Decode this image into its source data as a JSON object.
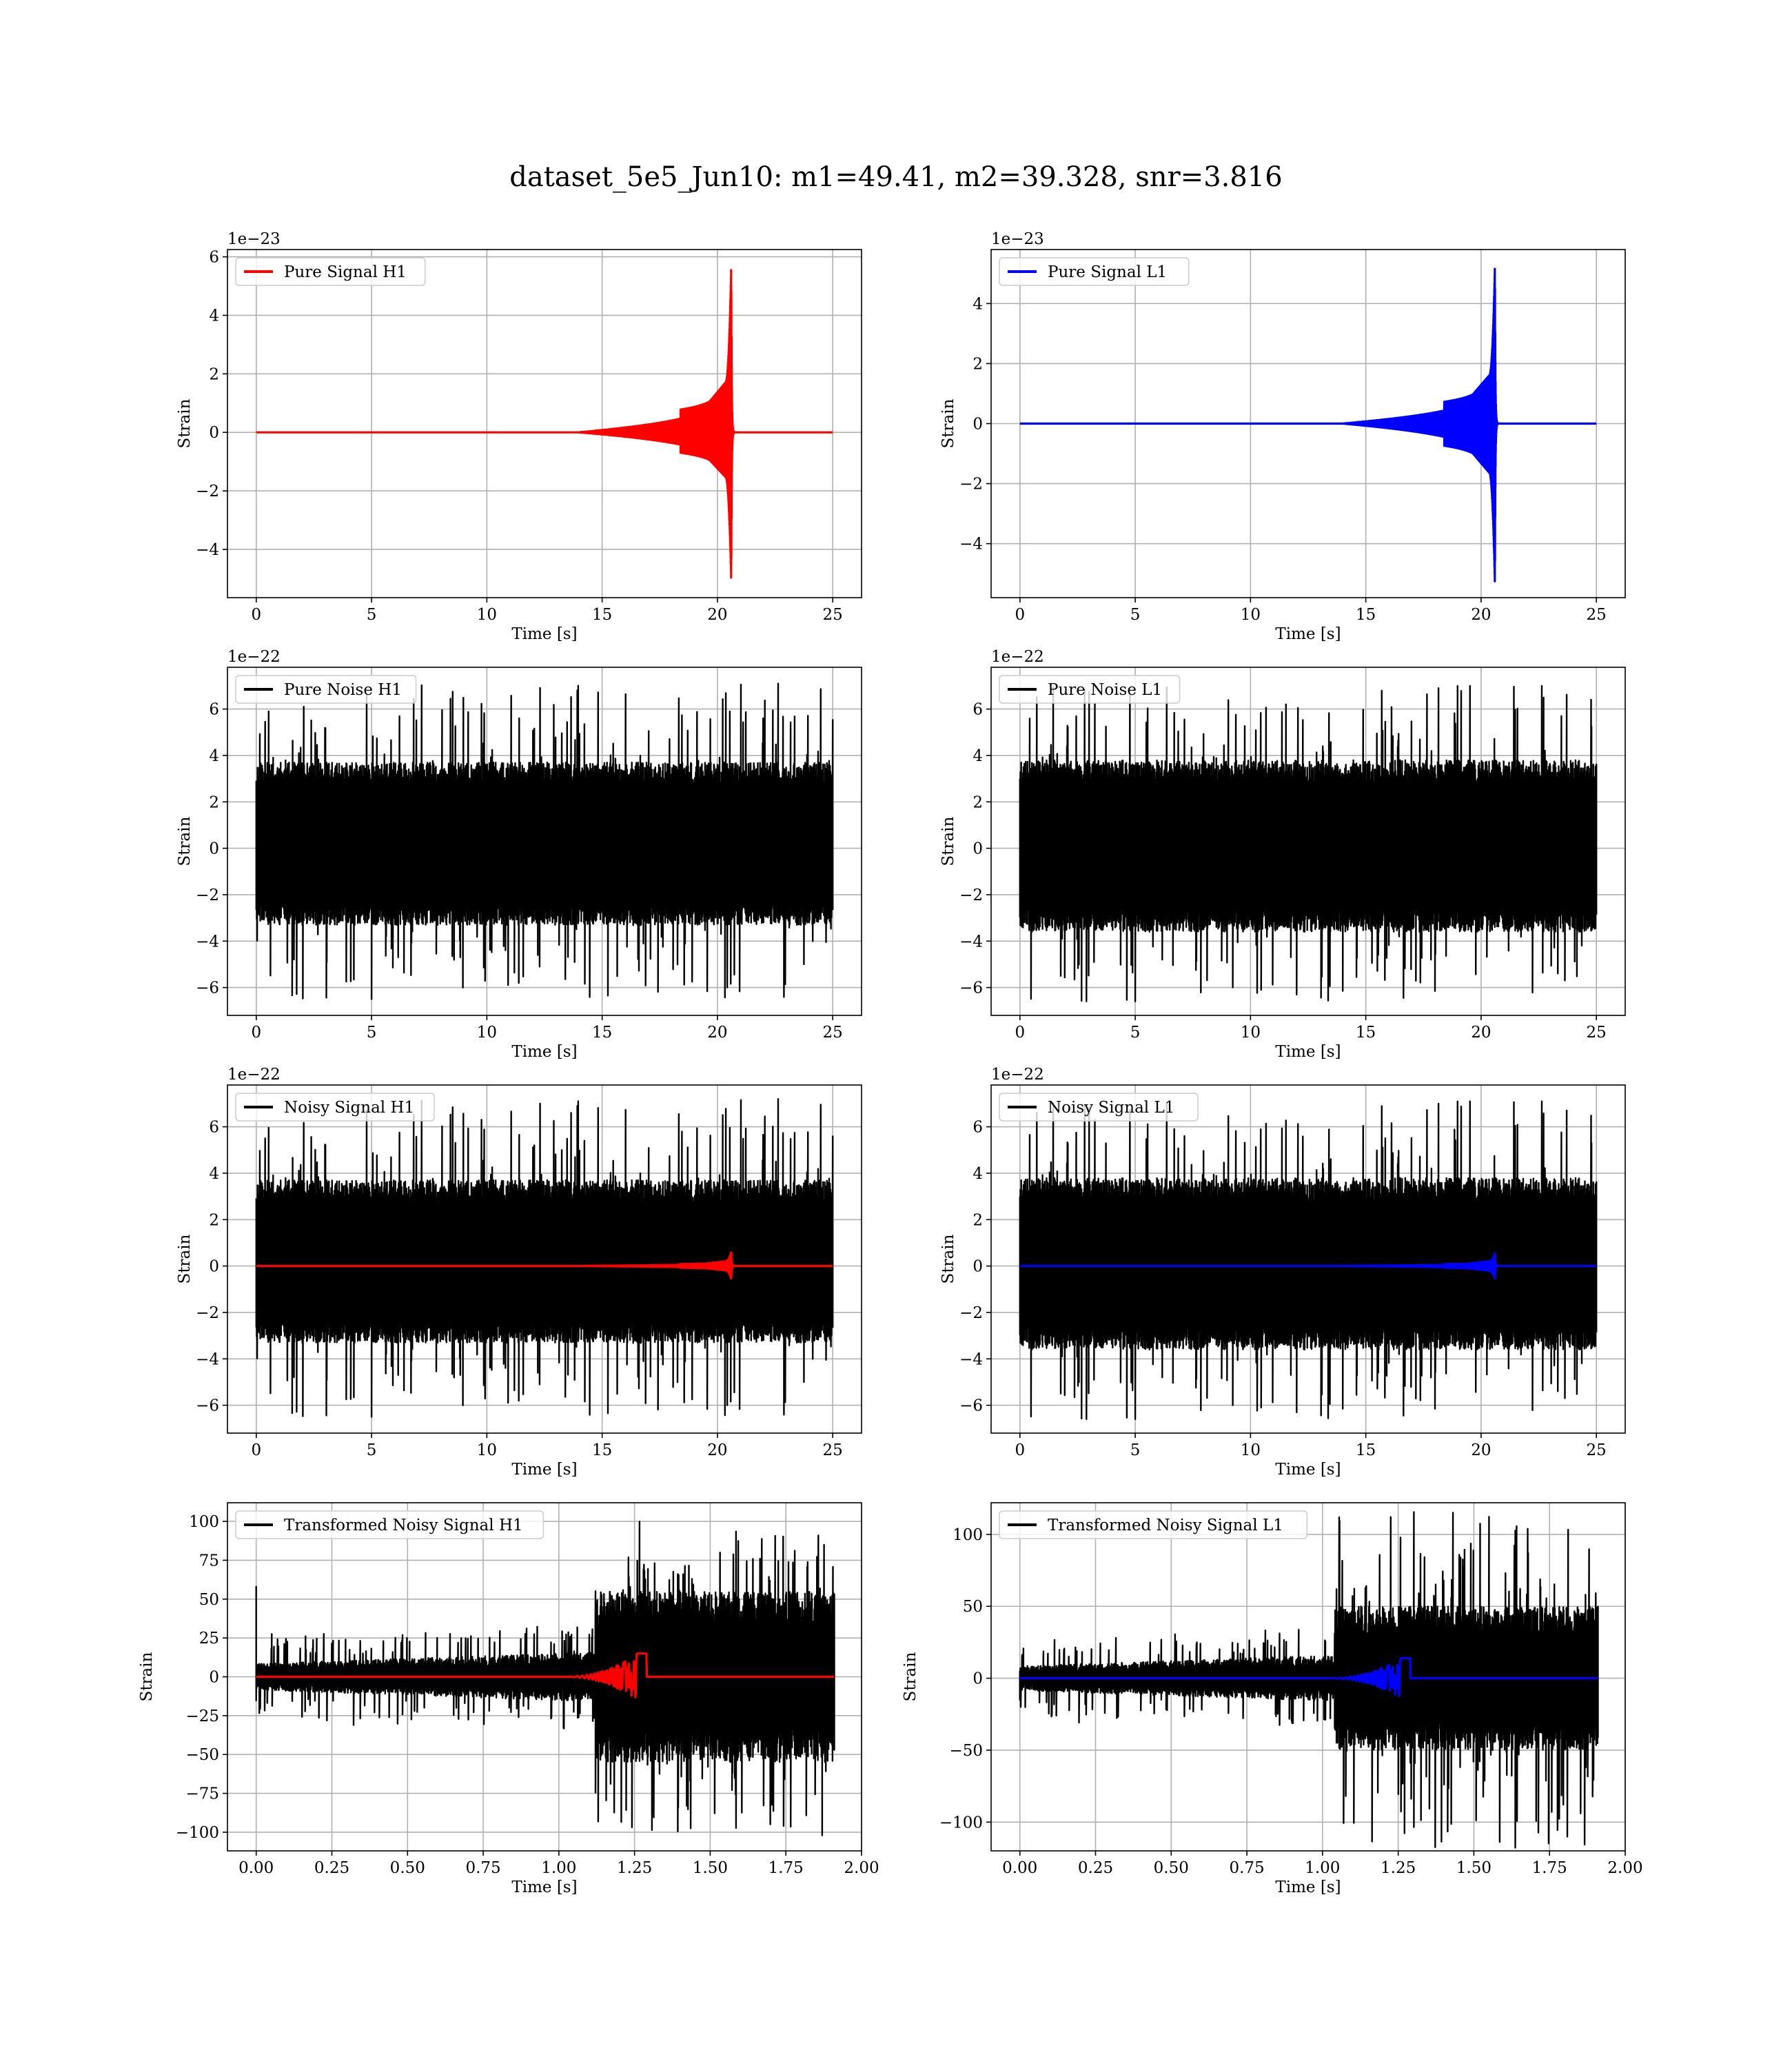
{
  "figure": {
    "title": "dataset_5e5_Jun10: m1=49.41, m2=39.328, snr=3.816"
  },
  "colors": {
    "h1": "#ff0000",
    "l1": "#0000ff",
    "noise": "#000000"
  },
  "chart_data": [
    {
      "id": "pure-signal-h1",
      "type": "line",
      "xlabel": "Time [s]",
      "ylabel": "Strain",
      "offset_label": "1e−23",
      "legend": "top-left",
      "grid": true,
      "xlim": [
        -1.25,
        26.25
      ],
      "ylim": [
        -5.65,
        6.25
      ],
      "xticks": [
        0,
        5,
        10,
        15,
        20,
        25
      ],
      "xtick_labels": [
        "0",
        "5",
        "10",
        "15",
        "20",
        "25"
      ],
      "yticks": [
        -4,
        -2,
        0,
        2,
        4,
        6
      ],
      "ytick_labels": [
        "−4",
        "−2",
        "0",
        "2",
        "4",
        "6"
      ],
      "series": [
        {
          "name": "Pure Signal H1",
          "kind": "chirp",
          "color": "#ff0000",
          "x_start": 0,
          "x_end": 25,
          "merger_time": 20.6,
          "peak_max": 5.7,
          "peak_min": -5.1,
          "early_env": 1.7,
          "ringdown": 0.25
        }
      ]
    },
    {
      "id": "pure-signal-l1",
      "type": "line",
      "xlabel": "Time [s]",
      "ylabel": "Strain",
      "offset_label": "1e−23",
      "legend": "top-left",
      "grid": true,
      "xlim": [
        -1.25,
        26.25
      ],
      "ylim": [
        -5.8,
        5.8
      ],
      "xticks": [
        0,
        5,
        10,
        15,
        20,
        25
      ],
      "xtick_labels": [
        "0",
        "5",
        "10",
        "15",
        "20",
        "25"
      ],
      "yticks": [
        -4,
        -2,
        0,
        2,
        4
      ],
      "ytick_labels": [
        "−4",
        "−2",
        "0",
        "2",
        "4"
      ],
      "series": [
        {
          "name": "Pure Signal L1",
          "kind": "chirp",
          "color": "#0000ff",
          "x_start": 0,
          "x_end": 25,
          "merger_time": 20.6,
          "peak_max": 5.3,
          "peak_min": -5.4,
          "early_env": 1.6,
          "ringdown": 0.25
        }
      ]
    },
    {
      "id": "pure-noise-h1",
      "type": "line",
      "xlabel": "Time [s]",
      "ylabel": "Strain",
      "offset_label": "1e−22",
      "legend": "top-left",
      "grid": true,
      "xlim": [
        -1.25,
        26.25
      ],
      "ylim": [
        -7.2,
        7.8
      ],
      "xticks": [
        0,
        5,
        10,
        15,
        20,
        25
      ],
      "xtick_labels": [
        "0",
        "5",
        "10",
        "15",
        "20",
        "25"
      ],
      "yticks": [
        -6,
        -4,
        -2,
        0,
        2,
        4,
        6
      ],
      "ytick_labels": [
        "−6",
        "−4",
        "−2",
        "0",
        "2",
        "4",
        "6"
      ],
      "series": [
        {
          "name": "Pure Noise H1",
          "kind": "noise",
          "color": "#000000",
          "x_start": 0,
          "x_end": 25,
          "band_max": 3.7,
          "band_min": -3.3,
          "spike_max": 7.1,
          "spike_min": -6.5,
          "seed": 11
        }
      ]
    },
    {
      "id": "pure-noise-l1",
      "type": "line",
      "xlabel": "Time [s]",
      "ylabel": "Strain",
      "offset_label": "1e−22",
      "legend": "top-left",
      "grid": true,
      "xlim": [
        -1.25,
        26.25
      ],
      "ylim": [
        -7.2,
        7.8
      ],
      "xticks": [
        0,
        5,
        10,
        15,
        20,
        25
      ],
      "xtick_labels": [
        "0",
        "5",
        "10",
        "15",
        "20",
        "25"
      ],
      "yticks": [
        -6,
        -4,
        -2,
        0,
        2,
        4,
        6
      ],
      "ytick_labels": [
        "−6",
        "−4",
        "−2",
        "0",
        "2",
        "4",
        "6"
      ],
      "series": [
        {
          "name": "Pure Noise L1",
          "kind": "noise",
          "color": "#000000",
          "x_start": 0,
          "x_end": 25,
          "band_max": 3.8,
          "band_min": -3.6,
          "spike_max": 7.0,
          "spike_min": -6.6,
          "seed": 23
        }
      ]
    },
    {
      "id": "noisy-signal-h1",
      "type": "line",
      "xlabel": "Time [s]",
      "ylabel": "Strain",
      "offset_label": "1e−22",
      "legend": "top-left",
      "grid": true,
      "xlim": [
        -1.25,
        26.25
      ],
      "ylim": [
        -7.2,
        7.8
      ],
      "xticks": [
        0,
        5,
        10,
        15,
        20,
        25
      ],
      "xtick_labels": [
        "0",
        "5",
        "10",
        "15",
        "20",
        "25"
      ],
      "yticks": [
        -6,
        -4,
        -2,
        0,
        2,
        4,
        6
      ],
      "ytick_labels": [
        "−6",
        "−4",
        "−2",
        "0",
        "2",
        "4",
        "6"
      ],
      "series": [
        {
          "name": "Noisy Signal H1",
          "kind": "noise",
          "color": "#000000",
          "x_start": 0,
          "x_end": 25,
          "band_max": 3.7,
          "band_min": -3.3,
          "spike_max": 7.2,
          "spike_min": -6.5,
          "seed": 11
        },
        {
          "name": "",
          "kind": "chirp",
          "color": "#ff0000",
          "x_start": 0,
          "x_end": 25,
          "merger_time": 20.6,
          "peak_max": 0.6,
          "peak_min": -0.55,
          "early_env": 0.2,
          "ringdown": 0.25
        }
      ]
    },
    {
      "id": "noisy-signal-l1",
      "type": "line",
      "xlabel": "Time [s]",
      "ylabel": "Strain",
      "offset_label": "1e−22",
      "legend": "top-left",
      "grid": true,
      "xlim": [
        -1.25,
        26.25
      ],
      "ylim": [
        -7.2,
        7.8
      ],
      "xticks": [
        0,
        5,
        10,
        15,
        20,
        25
      ],
      "xtick_labels": [
        "0",
        "5",
        "10",
        "15",
        "20",
        "25"
      ],
      "yticks": [
        -6,
        -4,
        -2,
        0,
        2,
        4,
        6
      ],
      "ytick_labels": [
        "−6",
        "−4",
        "−2",
        "0",
        "2",
        "4",
        "6"
      ],
      "series": [
        {
          "name": "Noisy Signal L1",
          "kind": "noise",
          "color": "#000000",
          "x_start": 0,
          "x_end": 25,
          "band_max": 3.8,
          "band_min": -3.6,
          "spike_max": 7.1,
          "spike_min": -6.6,
          "seed": 23
        },
        {
          "name": "",
          "kind": "chirp",
          "color": "#0000ff",
          "x_start": 0,
          "x_end": 25,
          "merger_time": 20.6,
          "peak_max": 0.55,
          "peak_min": -0.55,
          "early_env": 0.2,
          "ringdown": 0.25
        }
      ]
    },
    {
      "id": "transformed-noisy-signal-h1",
      "type": "line",
      "xlabel": "Time [s]",
      "ylabel": "Strain",
      "offset_label": "",
      "legend": "top-left",
      "grid": true,
      "xlim": [
        -0.095,
        2.0
      ],
      "ylim": [
        -112,
        112
      ],
      "xticks": [
        0,
        0.25,
        0.5,
        0.75,
        1.0,
        1.25,
        1.5,
        1.75,
        2.0
      ],
      "xtick_labels": [
        "0.00",
        "0.25",
        "0.50",
        "0.75",
        "1.00",
        "1.25",
        "1.50",
        "1.75",
        "2.00"
      ],
      "yticks": [
        -100,
        -75,
        -50,
        -25,
        0,
        25,
        50,
        75,
        100
      ],
      "ytick_labels": [
        "−100",
        "−75",
        "−50",
        "−25",
        "0",
        "25",
        "50",
        "75",
        "100"
      ],
      "series": [
        {
          "name": "Transformed Noisy Signal H1",
          "kind": "whitened",
          "color": "#000000",
          "x_start": 0,
          "x_end": 1.91,
          "jump_time": 1.12,
          "early_amp": 6,
          "late_amp": 15,
          "late_band": 55,
          "late_spike": 100,
          "start_spike": 58,
          "end_spike": -102,
          "end_time": 1.87,
          "seed": 37
        },
        {
          "name": "",
          "kind": "wchirp",
          "color": "#ff0000",
          "x_start": 0,
          "x_end": 1.91,
          "merger_time": 1.26,
          "peak": 15,
          "onset": 1.0
        }
      ]
    },
    {
      "id": "transformed-noisy-signal-l1",
      "type": "line",
      "xlabel": "Time [s]",
      "ylabel": "Strain",
      "offset_label": "",
      "legend": "top-left",
      "grid": true,
      "xlim": [
        -0.095,
        2.0
      ],
      "ylim": [
        -120,
        122
      ],
      "xticks": [
        0,
        0.25,
        0.5,
        0.75,
        1.0,
        1.25,
        1.5,
        1.75,
        2.0
      ],
      "xtick_labels": [
        "0.00",
        "0.25",
        "0.50",
        "0.75",
        "1.00",
        "1.25",
        "1.50",
        "1.75",
        "2.00"
      ],
      "yticks": [
        -100,
        -50,
        0,
        50,
        100
      ],
      "ytick_labels": [
        "−100",
        "−50",
        "0",
        "50",
        "100"
      ],
      "series": [
        {
          "name": "Transformed Noisy Signal L1",
          "kind": "whitened",
          "color": "#000000",
          "x_start": 0,
          "x_end": 1.91,
          "jump_time": 1.04,
          "early_amp": 6,
          "late_amp": 16,
          "late_band": 50,
          "late_spike": 118,
          "start_spike": 0,
          "end_spike": -62,
          "end_time": 1.87,
          "seed": 53
        },
        {
          "name": "",
          "kind": "wchirp",
          "color": "#0000ff",
          "x_start": 0,
          "x_end": 1.91,
          "merger_time": 1.26,
          "peak": 14,
          "onset": 1.0
        }
      ]
    }
  ]
}
